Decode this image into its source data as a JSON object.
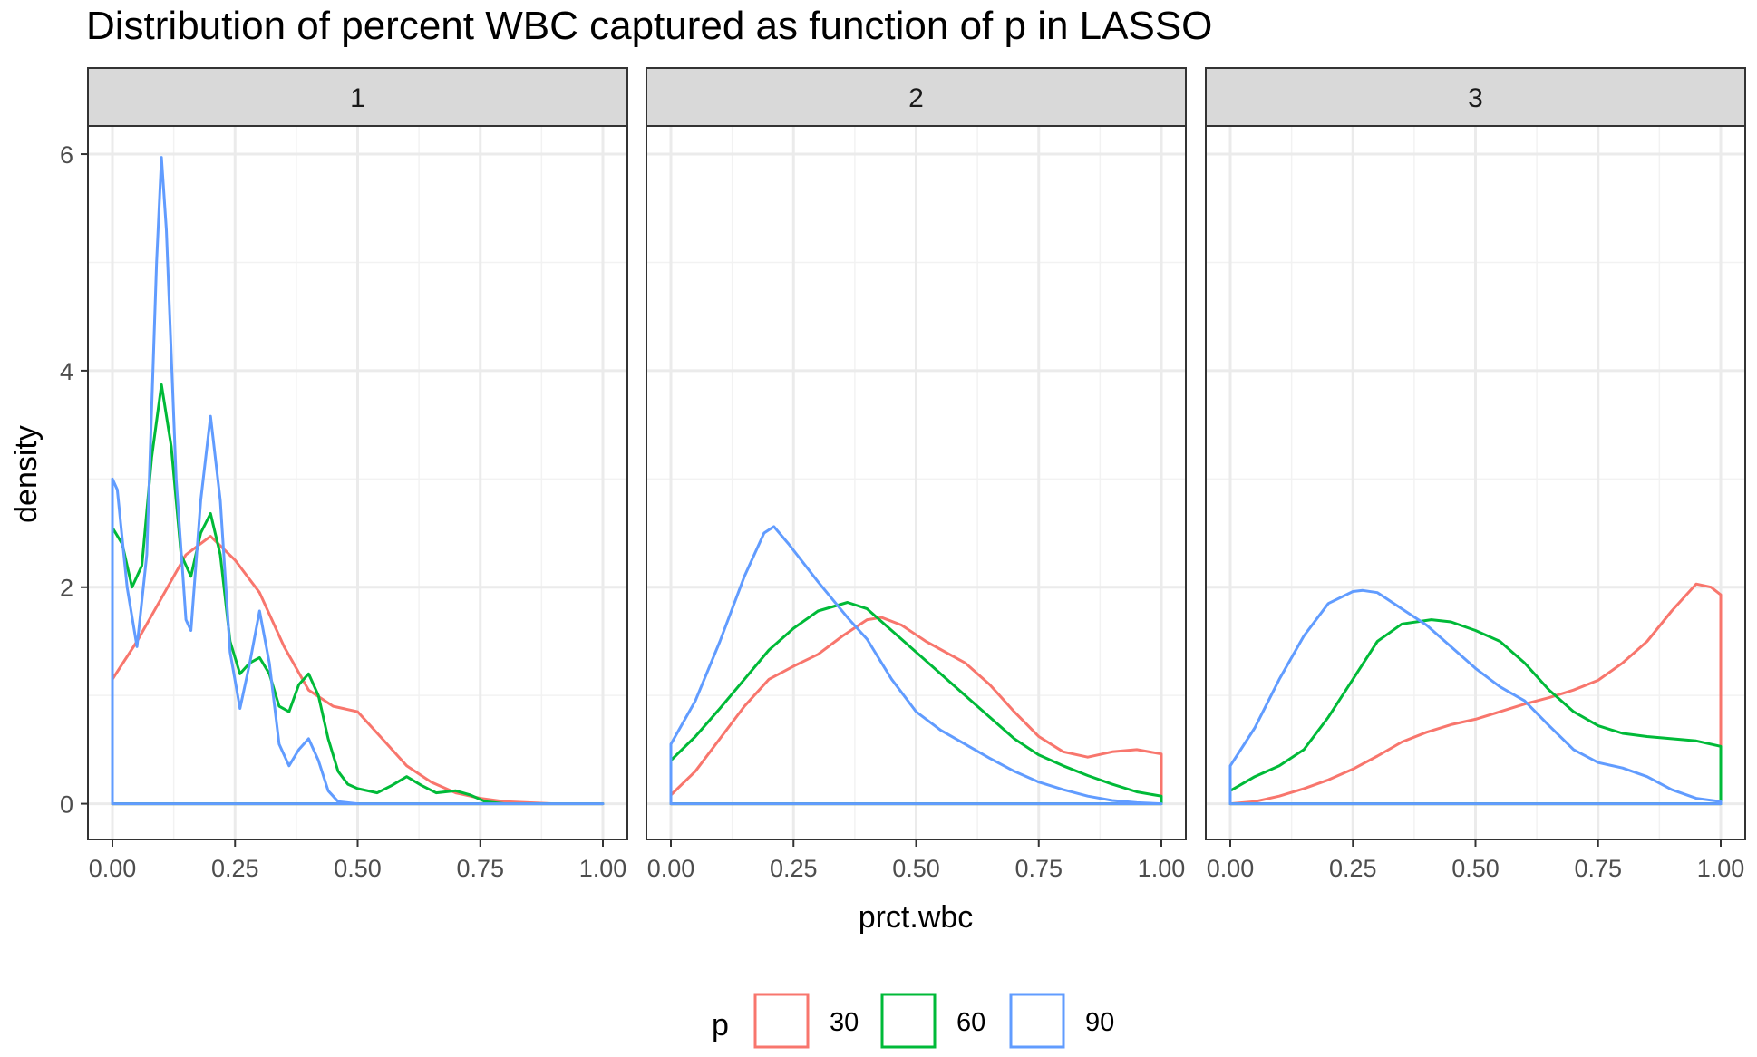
{
  "chart_data": {
    "type": "line",
    "title": "Distribution of percent WBC captured as function of p in LASSO",
    "xlabel": "prct.wbc",
    "ylabel": "density",
    "xlim": [
      0,
      1
    ],
    "ylim": [
      0,
      6
    ],
    "x_ticks": [
      "0.00",
      "0.25",
      "0.50",
      "0.75",
      "1.00"
    ],
    "y_ticks": [
      "0",
      "2",
      "4",
      "6"
    ],
    "grid": true,
    "legend": {
      "title": "p",
      "position": "bottom",
      "entries": [
        {
          "label": "30",
          "color": "#F8766D"
        },
        {
          "label": "60",
          "color": "#00BA38"
        },
        {
          "label": "90",
          "color": "#619CFF"
        }
      ]
    },
    "panels": [
      {
        "strip": "1",
        "series": [
          {
            "name": "30",
            "color": "#F8766D",
            "points": [
              [
                0,
                1.15
              ],
              [
                0.05,
                1.5
              ],
              [
                0.1,
                1.9
              ],
              [
                0.15,
                2.3
              ],
              [
                0.2,
                2.47
              ],
              [
                0.25,
                2.25
              ],
              [
                0.3,
                1.95
              ],
              [
                0.35,
                1.45
              ],
              [
                0.4,
                1.05
              ],
              [
                0.45,
                0.9
              ],
              [
                0.5,
                0.85
              ],
              [
                0.55,
                0.6
              ],
              [
                0.6,
                0.35
              ],
              [
                0.65,
                0.2
              ],
              [
                0.7,
                0.1
              ],
              [
                0.75,
                0.05
              ],
              [
                0.8,
                0.02
              ],
              [
                0.9,
                0
              ],
              [
                1.0,
                0
              ]
            ]
          },
          {
            "name": "60",
            "color": "#00BA38",
            "points": [
              [
                0,
                2.55
              ],
              [
                0.02,
                2.4
              ],
              [
                0.04,
                2.0
              ],
              [
                0.06,
                2.2
              ],
              [
                0.08,
                3.2
              ],
              [
                0.1,
                3.87
              ],
              [
                0.12,
                3.3
              ],
              [
                0.14,
                2.3
              ],
              [
                0.16,
                2.1
              ],
              [
                0.18,
                2.5
              ],
              [
                0.2,
                2.68
              ],
              [
                0.22,
                2.3
              ],
              [
                0.24,
                1.5
              ],
              [
                0.26,
                1.2
              ],
              [
                0.28,
                1.3
              ],
              [
                0.3,
                1.35
              ],
              [
                0.32,
                1.2
              ],
              [
                0.34,
                0.9
              ],
              [
                0.36,
                0.85
              ],
              [
                0.38,
                1.1
              ],
              [
                0.4,
                1.2
              ],
              [
                0.42,
                1.0
              ],
              [
                0.44,
                0.6
              ],
              [
                0.46,
                0.3
              ],
              [
                0.48,
                0.18
              ],
              [
                0.5,
                0.14
              ],
              [
                0.54,
                0.1
              ],
              [
                0.57,
                0.17
              ],
              [
                0.6,
                0.25
              ],
              [
                0.63,
                0.17
              ],
              [
                0.66,
                0.1
              ],
              [
                0.7,
                0.12
              ],
              [
                0.73,
                0.08
              ],
              [
                0.76,
                0.02
              ],
              [
                0.8,
                0
              ],
              [
                1.0,
                0
              ]
            ]
          },
          {
            "name": "90",
            "color": "#619CFF",
            "points": [
              [
                0,
                3.0
              ],
              [
                0.01,
                2.9
              ],
              [
                0.03,
                2.0
              ],
              [
                0.05,
                1.45
              ],
              [
                0.07,
                2.3
              ],
              [
                0.09,
                5.0
              ],
              [
                0.1,
                5.97
              ],
              [
                0.11,
                5.3
              ],
              [
                0.13,
                3.0
              ],
              [
                0.15,
                1.7
              ],
              [
                0.16,
                1.6
              ],
              [
                0.18,
                2.8
              ],
              [
                0.2,
                3.58
              ],
              [
                0.22,
                2.8
              ],
              [
                0.24,
                1.4
              ],
              [
                0.26,
                0.88
              ],
              [
                0.28,
                1.3
              ],
              [
                0.3,
                1.78
              ],
              [
                0.32,
                1.3
              ],
              [
                0.34,
                0.55
              ],
              [
                0.36,
                0.35
              ],
              [
                0.38,
                0.5
              ],
              [
                0.4,
                0.6
              ],
              [
                0.42,
                0.4
              ],
              [
                0.44,
                0.12
              ],
              [
                0.46,
                0.02
              ],
              [
                0.5,
                0
              ],
              [
                1.0,
                0
              ]
            ]
          }
        ]
      },
      {
        "strip": "2",
        "series": [
          {
            "name": "30",
            "color": "#F8766D",
            "points": [
              [
                0,
                0.08
              ],
              [
                0.05,
                0.3
              ],
              [
                0.1,
                0.6
              ],
              [
                0.15,
                0.9
              ],
              [
                0.2,
                1.15
              ],
              [
                0.25,
                1.27
              ],
              [
                0.3,
                1.38
              ],
              [
                0.35,
                1.55
              ],
              [
                0.4,
                1.7
              ],
              [
                0.43,
                1.72
              ],
              [
                0.47,
                1.65
              ],
              [
                0.52,
                1.5
              ],
              [
                0.6,
                1.3
              ],
              [
                0.65,
                1.1
              ],
              [
                0.7,
                0.85
              ],
              [
                0.75,
                0.62
              ],
              [
                0.8,
                0.48
              ],
              [
                0.85,
                0.43
              ],
              [
                0.9,
                0.48
              ],
              [
                0.95,
                0.5
              ],
              [
                1.0,
                0.46
              ]
            ]
          },
          {
            "name": "60",
            "color": "#00BA38",
            "points": [
              [
                0,
                0.4
              ],
              [
                0.05,
                0.62
              ],
              [
                0.1,
                0.88
              ],
              [
                0.15,
                1.15
              ],
              [
                0.2,
                1.42
              ],
              [
                0.25,
                1.62
              ],
              [
                0.3,
                1.78
              ],
              [
                0.36,
                1.86
              ],
              [
                0.4,
                1.8
              ],
              [
                0.45,
                1.6
              ],
              [
                0.5,
                1.4
              ],
              [
                0.55,
                1.2
              ],
              [
                0.6,
                1.0
              ],
              [
                0.65,
                0.8
              ],
              [
                0.7,
                0.6
              ],
              [
                0.75,
                0.45
              ],
              [
                0.8,
                0.35
              ],
              [
                0.85,
                0.26
              ],
              [
                0.9,
                0.18
              ],
              [
                0.95,
                0.11
              ],
              [
                1.0,
                0.07
              ]
            ]
          },
          {
            "name": "90",
            "color": "#619CFF",
            "points": [
              [
                0,
                0.55
              ],
              [
                0.05,
                0.95
              ],
              [
                0.1,
                1.5
              ],
              [
                0.15,
                2.1
              ],
              [
                0.19,
                2.5
              ],
              [
                0.21,
                2.56
              ],
              [
                0.24,
                2.4
              ],
              [
                0.3,
                2.05
              ],
              [
                0.36,
                1.72
              ],
              [
                0.4,
                1.52
              ],
              [
                0.45,
                1.15
              ],
              [
                0.5,
                0.85
              ],
              [
                0.55,
                0.68
              ],
              [
                0.6,
                0.55
              ],
              [
                0.65,
                0.42
              ],
              [
                0.7,
                0.3
              ],
              [
                0.75,
                0.2
              ],
              [
                0.8,
                0.13
              ],
              [
                0.85,
                0.07
              ],
              [
                0.9,
                0.03
              ],
              [
                0.95,
                0.01
              ],
              [
                1.0,
                0
              ]
            ]
          }
        ]
      },
      {
        "strip": "3",
        "series": [
          {
            "name": "30",
            "color": "#F8766D",
            "points": [
              [
                0,
                0
              ],
              [
                0.05,
                0.02
              ],
              [
                0.1,
                0.07
              ],
              [
                0.15,
                0.14
              ],
              [
                0.2,
                0.22
              ],
              [
                0.25,
                0.32
              ],
              [
                0.3,
                0.44
              ],
              [
                0.35,
                0.57
              ],
              [
                0.4,
                0.66
              ],
              [
                0.45,
                0.73
              ],
              [
                0.5,
                0.78
              ],
              [
                0.55,
                0.85
              ],
              [
                0.6,
                0.92
              ],
              [
                0.65,
                0.98
              ],
              [
                0.7,
                1.05
              ],
              [
                0.75,
                1.14
              ],
              [
                0.8,
                1.3
              ],
              [
                0.85,
                1.5
              ],
              [
                0.9,
                1.78
              ],
              [
                0.95,
                2.03
              ],
              [
                0.98,
                2.0
              ],
              [
                1.0,
                1.93
              ]
            ]
          },
          {
            "name": "60",
            "color": "#00BA38",
            "points": [
              [
                0,
                0.12
              ],
              [
                0.05,
                0.25
              ],
              [
                0.1,
                0.35
              ],
              [
                0.15,
                0.5
              ],
              [
                0.2,
                0.8
              ],
              [
                0.25,
                1.15
              ],
              [
                0.3,
                1.5
              ],
              [
                0.35,
                1.66
              ],
              [
                0.41,
                1.7
              ],
              [
                0.45,
                1.68
              ],
              [
                0.5,
                1.6
              ],
              [
                0.55,
                1.5
              ],
              [
                0.6,
                1.3
              ],
              [
                0.65,
                1.05
              ],
              [
                0.7,
                0.85
              ],
              [
                0.75,
                0.72
              ],
              [
                0.8,
                0.65
              ],
              [
                0.85,
                0.62
              ],
              [
                0.9,
                0.6
              ],
              [
                0.95,
                0.58
              ],
              [
                1.0,
                0.53
              ]
            ]
          },
          {
            "name": "90",
            "color": "#619CFF",
            "points": [
              [
                0,
                0.35
              ],
              [
                0.05,
                0.7
              ],
              [
                0.1,
                1.15
              ],
              [
                0.15,
                1.55
              ],
              [
                0.2,
                1.85
              ],
              [
                0.25,
                1.96
              ],
              [
                0.27,
                1.97
              ],
              [
                0.3,
                1.95
              ],
              [
                0.35,
                1.8
              ],
              [
                0.4,
                1.65
              ],
              [
                0.45,
                1.45
              ],
              [
                0.5,
                1.25
              ],
              [
                0.55,
                1.08
              ],
              [
                0.6,
                0.95
              ],
              [
                0.65,
                0.72
              ],
              [
                0.7,
                0.5
              ],
              [
                0.75,
                0.38
              ],
              [
                0.8,
                0.33
              ],
              [
                0.85,
                0.25
              ],
              [
                0.9,
                0.13
              ],
              [
                0.95,
                0.05
              ],
              [
                1.0,
                0.02
              ]
            ]
          }
        ]
      }
    ]
  }
}
